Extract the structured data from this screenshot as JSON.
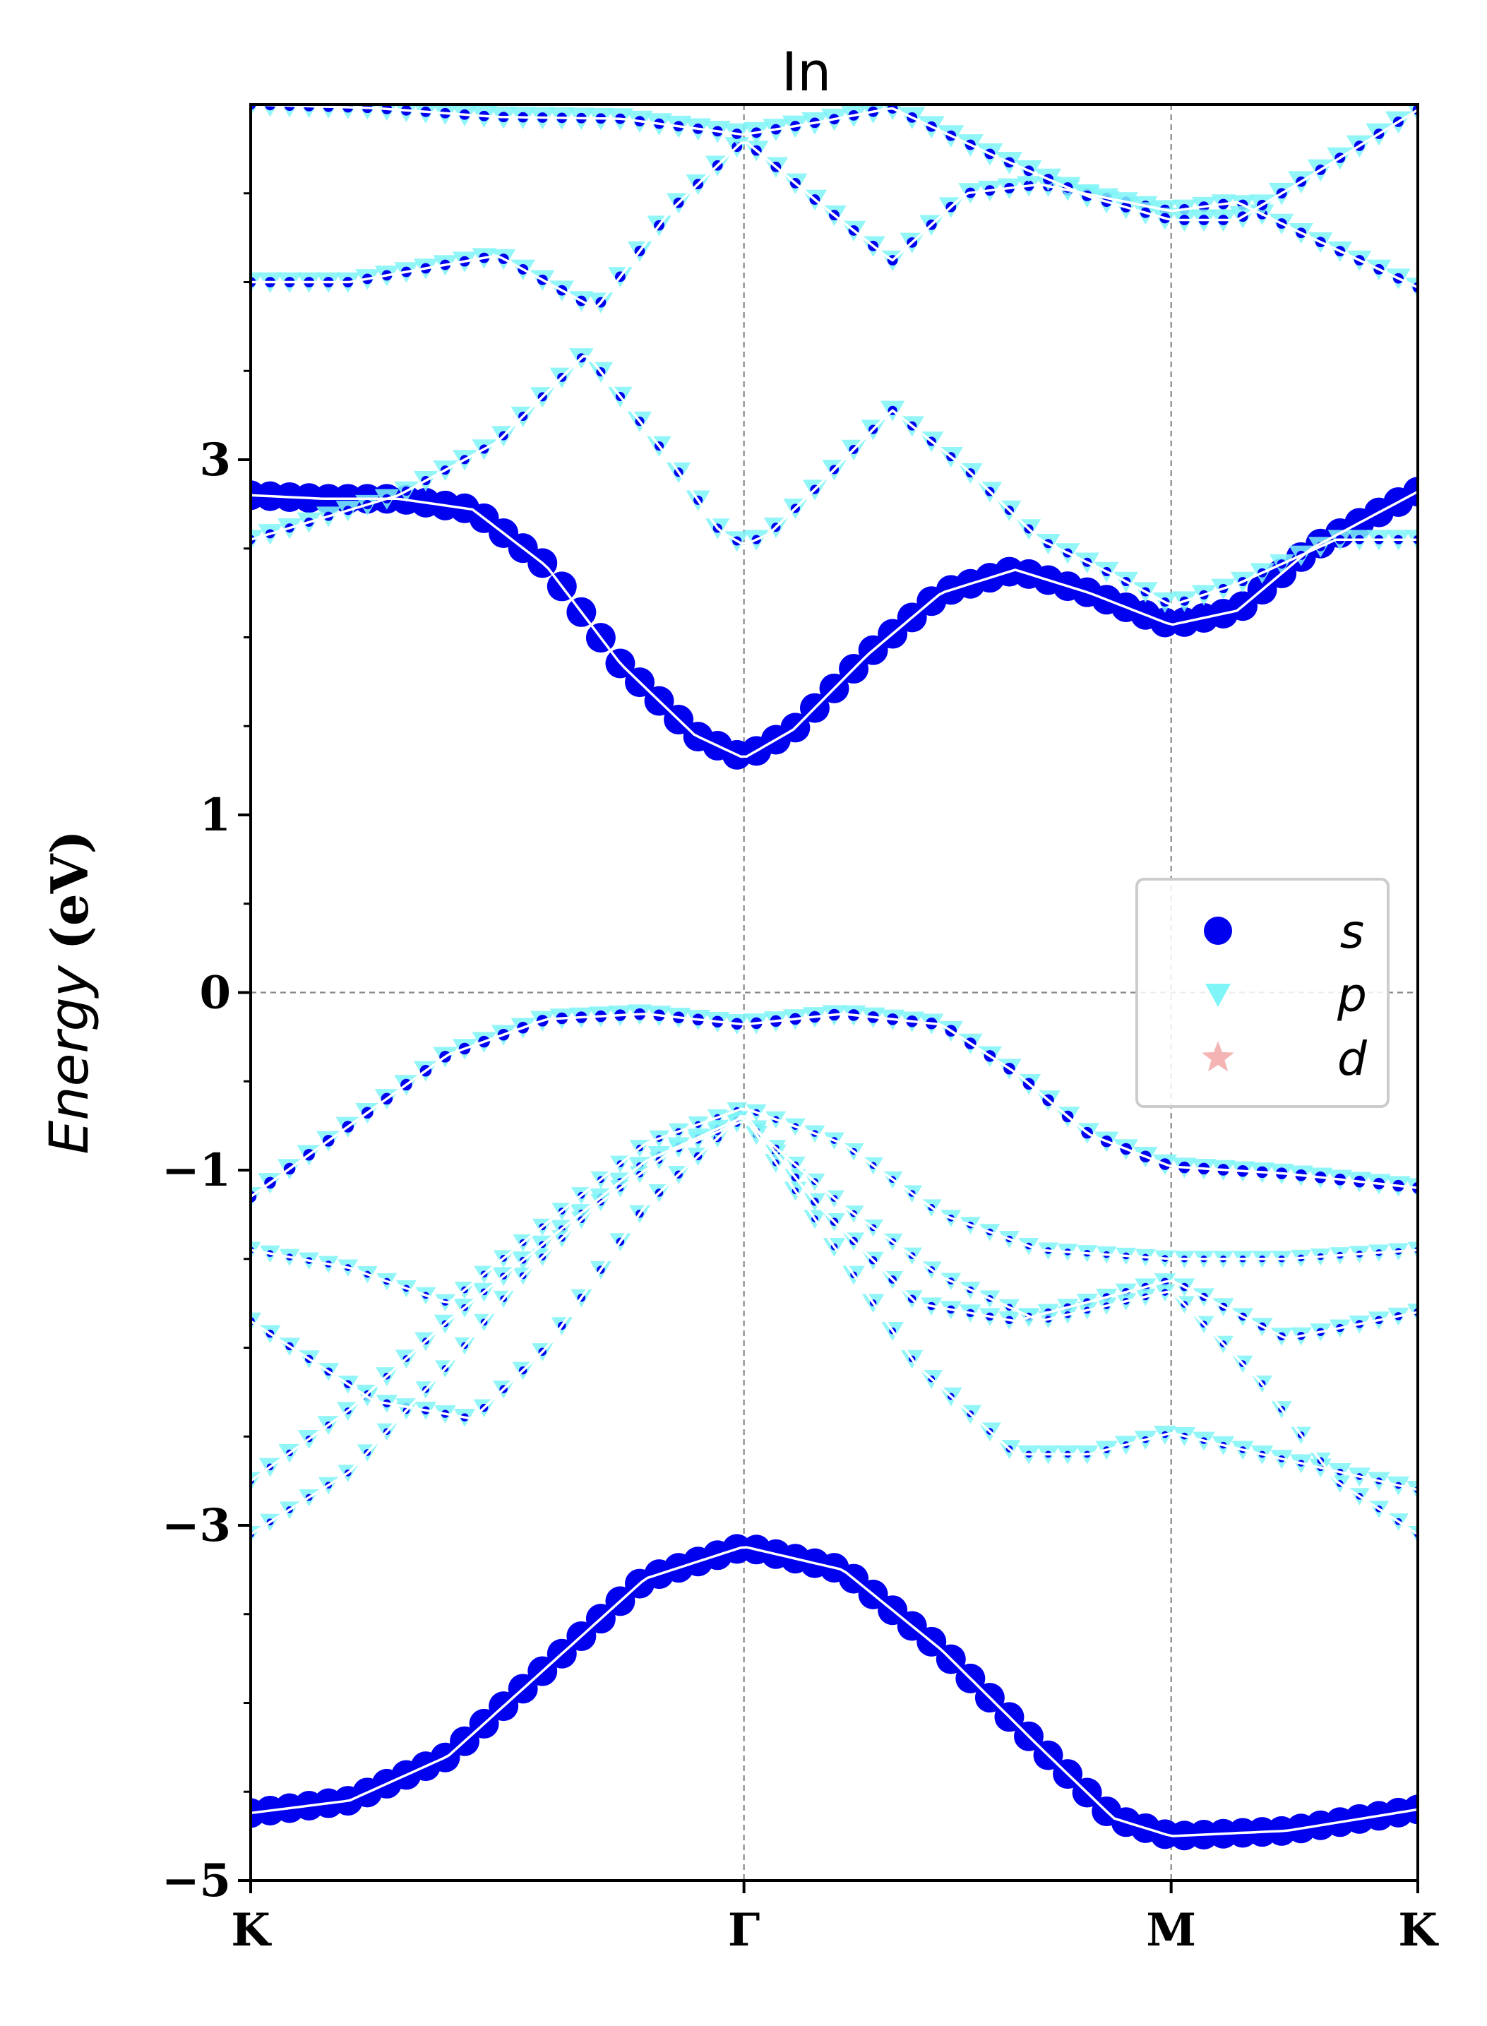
{
  "chart_data": {
    "type": "scatter",
    "title": "In",
    "ylabel_italic": "Energy",
    "ylabel_unit": "(eV)",
    "ylim": [
      -5,
      5
    ],
    "y_ticks": [
      {
        "value": 3,
        "label": "3"
      },
      {
        "value": 1,
        "label": "1"
      },
      {
        "value": 0,
        "label": "0"
      },
      {
        "value": -1,
        "label": "−1"
      },
      {
        "value": -3,
        "label": "−3"
      },
      {
        "value": -5,
        "label": "−5"
      }
    ],
    "y_minor_ticks": [
      4.5,
      4,
      3.5,
      2.5,
      2,
      1.5,
      0.5,
      -0.5,
      -1.5,
      -2,
      -2.5,
      -3.5,
      -4,
      -4.5
    ],
    "k_path": [
      {
        "label": "K",
        "x": 0
      },
      {
        "label": "Γ",
        "x": 1
      },
      {
        "label": "M",
        "x": 1.866
      },
      {
        "label": "K",
        "x": 2.366
      }
    ],
    "grid": "dashed at high-symmetry points and at 0 eV",
    "legend_position": "center-right",
    "legend": [
      {
        "label": "s",
        "marker": "circle",
        "color": "#0000ee"
      },
      {
        "label": "p",
        "marker": "triangle-down",
        "color": "#7ff5f7"
      },
      {
        "label": "d",
        "marker": "star",
        "color": "#f4b4b4"
      }
    ],
    "bands": [
      {
        "points": [
          [
            0,
            -4.62
          ],
          [
            0.2,
            -4.55
          ],
          [
            0.4,
            -4.3
          ],
          [
            0.6,
            -3.8
          ],
          [
            0.8,
            -3.3
          ],
          [
            1,
            -3.12
          ],
          [
            1.2,
            -3.25
          ],
          [
            1.4,
            -3.7
          ],
          [
            1.6,
            -4.25
          ],
          [
            1.75,
            -4.65
          ],
          [
            1.866,
            -4.75
          ],
          [
            2.1,
            -4.72
          ],
          [
            2.366,
            -4.6
          ]
        ],
        "s": 1.0,
        "p": 0.05
      },
      {
        "points": [
          [
            0,
            2.8
          ],
          [
            0.15,
            2.78
          ],
          [
            0.3,
            2.78
          ],
          [
            0.45,
            2.72
          ],
          [
            0.6,
            2.4
          ],
          [
            0.75,
            1.85
          ],
          [
            0.9,
            1.45
          ],
          [
            1,
            1.32
          ],
          [
            1.1,
            1.48
          ],
          [
            1.25,
            1.9
          ],
          [
            1.4,
            2.25
          ],
          [
            1.55,
            2.38
          ],
          [
            1.7,
            2.25
          ],
          [
            1.866,
            2.07
          ],
          [
            2.0,
            2.15
          ],
          [
            2.15,
            2.5
          ],
          [
            2.366,
            2.82
          ]
        ],
        "s": 1.0,
        "p": 0.15
      },
      {
        "points": [
          [
            0,
            2.55
          ],
          [
            0.3,
            2.8
          ],
          [
            0.5,
            3.1
          ],
          [
            0.68,
            3.6
          ],
          [
            0.85,
            3.0
          ],
          [
            0.95,
            2.6
          ],
          [
            1,
            2.52
          ],
          [
            1.05,
            2.58
          ],
          [
            1.15,
            2.85
          ],
          [
            1.3,
            3.28
          ],
          [
            1.45,
            2.95
          ],
          [
            1.6,
            2.55
          ],
          [
            1.75,
            2.35
          ],
          [
            1.866,
            2.18
          ],
          [
            2.0,
            2.3
          ],
          [
            2.2,
            2.55
          ],
          [
            2.366,
            2.55
          ]
        ],
        "s": 0.15,
        "p": 0.8
      },
      {
        "points": [
          [
            0,
            4.0
          ],
          [
            0.2,
            4.0
          ],
          [
            0.5,
            4.15
          ],
          [
            0.7,
            3.85
          ],
          [
            0.85,
            4.4
          ],
          [
            1,
            4.8
          ],
          [
            1.15,
            4.45
          ],
          [
            1.3,
            4.12
          ],
          [
            1.45,
            4.5
          ],
          [
            1.6,
            4.55
          ],
          [
            1.866,
            4.4
          ],
          [
            2.0,
            4.45
          ],
          [
            2.15,
            4.25
          ],
          [
            2.366,
            3.97
          ]
        ],
        "s": 0.2,
        "p": 0.8
      },
      {
        "points": [
          [
            0,
            5.0
          ],
          [
            0.25,
            4.98
          ],
          [
            0.5,
            4.93
          ],
          [
            0.75,
            4.92
          ],
          [
            1,
            4.83
          ],
          [
            1.15,
            4.9
          ],
          [
            1.3,
            4.98
          ],
          [
            1.5,
            4.72
          ],
          [
            1.7,
            4.48
          ],
          [
            1.866,
            4.35
          ],
          [
            2.0,
            4.35
          ],
          [
            2.15,
            4.6
          ],
          [
            2.366,
            4.97
          ]
        ],
        "s": 0.2,
        "p": 0.9
      },
      {
        "points": [
          [
            0,
            -1.15
          ],
          [
            0.2,
            -0.75
          ],
          [
            0.4,
            -0.35
          ],
          [
            0.6,
            -0.15
          ],
          [
            0.8,
            -0.12
          ],
          [
            1,
            -0.18
          ],
          [
            1.2,
            -0.12
          ],
          [
            1.4,
            -0.18
          ],
          [
            1.55,
            -0.45
          ],
          [
            1.7,
            -0.8
          ],
          [
            1.866,
            -0.98
          ],
          [
            2.1,
            -1.02
          ],
          [
            2.366,
            -1.1
          ]
        ],
        "s": 0.25,
        "p": 0.8
      },
      {
        "points": [
          [
            0,
            -1.45
          ],
          [
            0.2,
            -1.55
          ],
          [
            0.4,
            -1.75
          ],
          [
            0.6,
            -1.3
          ],
          [
            0.8,
            -0.85
          ],
          [
            1,
            -0.65
          ],
          [
            1.2,
            -0.85
          ],
          [
            1.4,
            -1.25
          ],
          [
            1.6,
            -1.45
          ],
          [
            1.866,
            -1.5
          ],
          [
            2.1,
            -1.5
          ],
          [
            2.366,
            -1.45
          ]
        ],
        "s": 0.05,
        "p": 0.6
      },
      {
        "points": [
          [
            0,
            -1.85
          ],
          [
            0.25,
            -2.3
          ],
          [
            0.45,
            -2.4
          ],
          [
            0.6,
            -2.0
          ],
          [
            0.8,
            -1.2
          ],
          [
            1,
            -0.68
          ],
          [
            1.15,
            -1.2
          ],
          [
            1.35,
            -1.75
          ],
          [
            1.55,
            -1.85
          ],
          [
            1.866,
            -1.62
          ],
          [
            2.1,
            -1.95
          ],
          [
            2.366,
            -1.8
          ]
        ],
        "s": 0.1,
        "p": 0.65
      },
      {
        "points": [
          [
            0,
            -2.75
          ],
          [
            0.2,
            -2.35
          ],
          [
            0.4,
            -1.85
          ],
          [
            0.6,
            -1.4
          ],
          [
            0.8,
            -0.95
          ],
          [
            1,
            -0.7
          ],
          [
            1.15,
            -1.3
          ],
          [
            1.35,
            -2.1
          ],
          [
            1.55,
            -2.6
          ],
          [
            1.7,
            -2.6
          ],
          [
            1.866,
            -2.48
          ],
          [
            2.05,
            -2.6
          ],
          [
            2.366,
            -2.8
          ]
        ],
        "s": 0.05,
        "p": 0.7
      },
      {
        "points": [
          [
            0,
            -3.05
          ],
          [
            0.2,
            -2.7
          ],
          [
            0.4,
            -2.1
          ],
          [
            0.55,
            -1.6
          ],
          [
            0.7,
            -1.2
          ],
          [
            0.85,
            -0.9
          ],
          [
            1,
            -0.72
          ],
          [
            1.2,
            -1.2
          ],
          [
            1.4,
            -1.6
          ],
          [
            1.6,
            -1.85
          ],
          [
            1.866,
            -1.68
          ],
          [
            2.05,
            -2.2
          ],
          [
            2.2,
            -2.75
          ],
          [
            2.366,
            -3.05
          ]
        ],
        "s": 0.05,
        "p": 0.6
      }
    ]
  }
}
